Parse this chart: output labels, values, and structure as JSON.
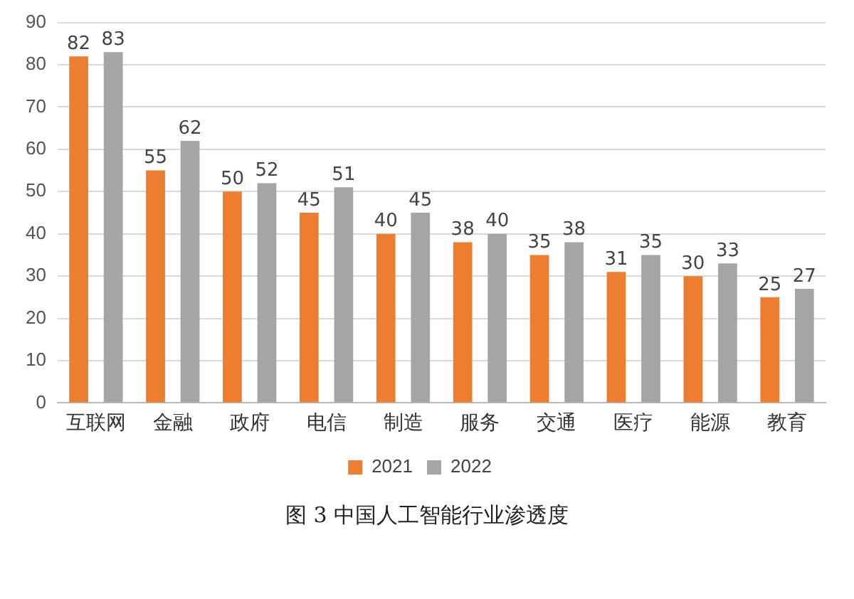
{
  "chart_data": {
    "type": "bar",
    "title": "图 3 中国人工智能行业渗透度",
    "categories": [
      "互联网",
      "金融",
      "政府",
      "电信",
      "制造",
      "服务",
      "交通",
      "医疗",
      "能源",
      "教育"
    ],
    "series": [
      {
        "name": "2021",
        "color": "#ed7d31",
        "values": [
          82,
          55,
          50,
          45,
          40,
          38,
          35,
          31,
          30,
          25
        ]
      },
      {
        "name": "2022",
        "color": "#a5a5a5",
        "values": [
          83,
          62,
          52,
          51,
          45,
          40,
          38,
          35,
          33,
          27
        ]
      }
    ],
    "ylim": [
      0,
      90
    ],
    "yticks": [
      0,
      10,
      20,
      30,
      40,
      50,
      60,
      70,
      80,
      90
    ],
    "grid": "y",
    "legend": "bottom",
    "data_labels": true
  }
}
